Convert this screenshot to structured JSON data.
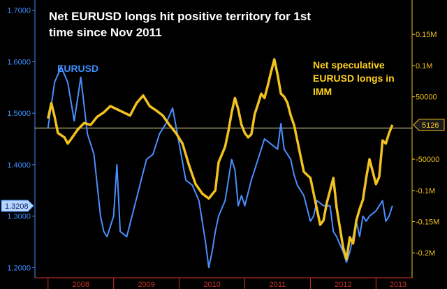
{
  "colors": {
    "background": "#000000",
    "eurusd": "#4a8fff",
    "imm": "#f2c21f",
    "left_axis": "#3d8fff",
    "right_axis": "#f2c21f",
    "x_axis": "#c8322a",
    "zero_line": "#f3e6a0",
    "title": "#ffffff"
  },
  "chart_data": {
    "type": "line",
    "title": "Net EURUSD longs hit positive territory for 1st time since Nov 2011",
    "x_labels": [
      "2008",
      "2009",
      "2010",
      "2011",
      "2012",
      "2013"
    ],
    "y_left": {
      "lim": [
        1.18,
        1.72
      ],
      "ticks": [
        "1.2000",
        "1.3000",
        "1.4000",
        "1.5000",
        "1.6000",
        "1.7000"
      ]
    },
    "y_right": {
      "lim": [
        -240000,
        205000
      ],
      "ticks": [
        "0.15M",
        "0.1M",
        "50000",
        "-50000",
        "-0.1M",
        "-0.15M",
        "-0.2M"
      ]
    },
    "series": [
      {
        "name": "EURUSD",
        "axis": "left",
        "last_label": "1.3208",
        "points": [
          [
            2008.0,
            1.472
          ],
          [
            2008.1,
            1.56
          ],
          [
            2008.2,
            1.59
          ],
          [
            2008.3,
            1.56
          ],
          [
            2008.4,
            1.485
          ],
          [
            2008.5,
            1.57
          ],
          [
            2008.6,
            1.46
          ],
          [
            2008.7,
            1.42
          ],
          [
            2008.8,
            1.3
          ],
          [
            2008.85,
            1.27
          ],
          [
            2008.9,
            1.26
          ],
          [
            2009.0,
            1.3
          ],
          [
            2009.05,
            1.4
          ],
          [
            2009.1,
            1.27
          ],
          [
            2009.2,
            1.26
          ],
          [
            2009.3,
            1.31
          ],
          [
            2009.4,
            1.36
          ],
          [
            2009.5,
            1.41
          ],
          [
            2009.6,
            1.42
          ],
          [
            2009.7,
            1.46
          ],
          [
            2009.8,
            1.48
          ],
          [
            2009.9,
            1.51
          ],
          [
            2010.0,
            1.44
          ],
          [
            2010.1,
            1.37
          ],
          [
            2010.2,
            1.36
          ],
          [
            2010.3,
            1.33
          ],
          [
            2010.4,
            1.25
          ],
          [
            2010.45,
            1.2
          ],
          [
            2010.5,
            1.23
          ],
          [
            2010.55,
            1.27
          ],
          [
            2010.6,
            1.3
          ],
          [
            2010.7,
            1.33
          ],
          [
            2010.75,
            1.37
          ],
          [
            2010.8,
            1.41
          ],
          [
            2010.85,
            1.39
          ],
          [
            2010.9,
            1.32
          ],
          [
            2010.95,
            1.34
          ],
          [
            2011.0,
            1.32
          ],
          [
            2011.1,
            1.37
          ],
          [
            2011.2,
            1.41
          ],
          [
            2011.3,
            1.45
          ],
          [
            2011.4,
            1.44
          ],
          [
            2011.5,
            1.43
          ],
          [
            2011.55,
            1.48
          ],
          [
            2011.6,
            1.43
          ],
          [
            2011.7,
            1.41
          ],
          [
            2011.75,
            1.38
          ],
          [
            2011.8,
            1.36
          ],
          [
            2011.9,
            1.34
          ],
          [
            2012.0,
            1.29
          ],
          [
            2012.05,
            1.3
          ],
          [
            2012.1,
            1.33
          ],
          [
            2012.2,
            1.32
          ],
          [
            2012.3,
            1.32
          ],
          [
            2012.35,
            1.27
          ],
          [
            2012.4,
            1.26
          ],
          [
            2012.5,
            1.23
          ],
          [
            2012.55,
            1.21
          ],
          [
            2012.6,
            1.23
          ],
          [
            2012.7,
            1.29
          ],
          [
            2012.75,
            1.26
          ],
          [
            2012.8,
            1.3
          ],
          [
            2012.85,
            1.29
          ],
          [
            2012.9,
            1.3
          ],
          [
            2013.0,
            1.31
          ],
          [
            2013.1,
            1.33
          ],
          [
            2013.15,
            1.29
          ],
          [
            2013.2,
            1.3
          ],
          [
            2013.25,
            1.32
          ]
        ]
      },
      {
        "name": "Net speculative EURUSD longs in IMM",
        "axis": "right",
        "last_label": "5126",
        "points": [
          [
            2008.0,
            15000
          ],
          [
            2008.05,
            40000
          ],
          [
            2008.1,
            18000
          ],
          [
            2008.15,
            -8000
          ],
          [
            2008.25,
            -15000
          ],
          [
            2008.3,
            -25000
          ],
          [
            2008.35,
            -18000
          ],
          [
            2008.45,
            -3000
          ],
          [
            2008.55,
            8000
          ],
          [
            2008.65,
            5000
          ],
          [
            2008.75,
            18000
          ],
          [
            2008.85,
            25000
          ],
          [
            2008.95,
            35000
          ],
          [
            2009.05,
            30000
          ],
          [
            2009.15,
            25000
          ],
          [
            2009.25,
            20000
          ],
          [
            2009.35,
            40000
          ],
          [
            2009.45,
            52000
          ],
          [
            2009.55,
            35000
          ],
          [
            2009.65,
            28000
          ],
          [
            2009.75,
            20000
          ],
          [
            2009.85,
            5000
          ],
          [
            2009.95,
            -8000
          ],
          [
            2010.05,
            -25000
          ],
          [
            2010.15,
            -60000
          ],
          [
            2010.25,
            -90000
          ],
          [
            2010.35,
            -105000
          ],
          [
            2010.45,
            -113000
          ],
          [
            2010.55,
            -100000
          ],
          [
            2010.6,
            -55000
          ],
          [
            2010.7,
            -30000
          ],
          [
            2010.75,
            -5000
          ],
          [
            2010.8,
            25000
          ],
          [
            2010.85,
            48000
          ],
          [
            2010.9,
            30000
          ],
          [
            2010.95,
            5000
          ],
          [
            2011.0,
            -8000
          ],
          [
            2011.05,
            -15000
          ],
          [
            2011.1,
            -10000
          ],
          [
            2011.15,
            22000
          ],
          [
            2011.2,
            38000
          ],
          [
            2011.25,
            55000
          ],
          [
            2011.3,
            48000
          ],
          [
            2011.35,
            68000
          ],
          [
            2011.4,
            90000
          ],
          [
            2011.45,
            110000
          ],
          [
            2011.5,
            85000
          ],
          [
            2011.55,
            55000
          ],
          [
            2011.6,
            50000
          ],
          [
            2011.65,
            40000
          ],
          [
            2011.7,
            20000
          ],
          [
            2011.75,
            5000
          ],
          [
            2011.8,
            -20000
          ],
          [
            2011.85,
            -45000
          ],
          [
            2011.9,
            -70000
          ],
          [
            2012.0,
            -80000
          ],
          [
            2012.05,
            -105000
          ],
          [
            2012.1,
            -130000
          ],
          [
            2012.15,
            -155000
          ],
          [
            2012.2,
            -148000
          ],
          [
            2012.25,
            -120000
          ],
          [
            2012.3,
            -100000
          ],
          [
            2012.35,
            -80000
          ],
          [
            2012.4,
            -128000
          ],
          [
            2012.45,
            -160000
          ],
          [
            2012.5,
            -192000
          ],
          [
            2012.55,
            -210000
          ],
          [
            2012.6,
            -175000
          ],
          [
            2012.65,
            -185000
          ],
          [
            2012.7,
            -148000
          ],
          [
            2012.75,
            -130000
          ],
          [
            2012.8,
            -115000
          ],
          [
            2012.85,
            -80000
          ],
          [
            2012.9,
            -50000
          ],
          [
            2012.95,
            -70000
          ],
          [
            2013.0,
            -90000
          ],
          [
            2013.05,
            -78000
          ],
          [
            2013.1,
            -20000
          ],
          [
            2013.15,
            -25000
          ],
          [
            2013.2,
            -8000
          ],
          [
            2013.25,
            5000
          ]
        ]
      }
    ],
    "reference_line": {
      "axis": "right",
      "value": 0
    }
  }
}
